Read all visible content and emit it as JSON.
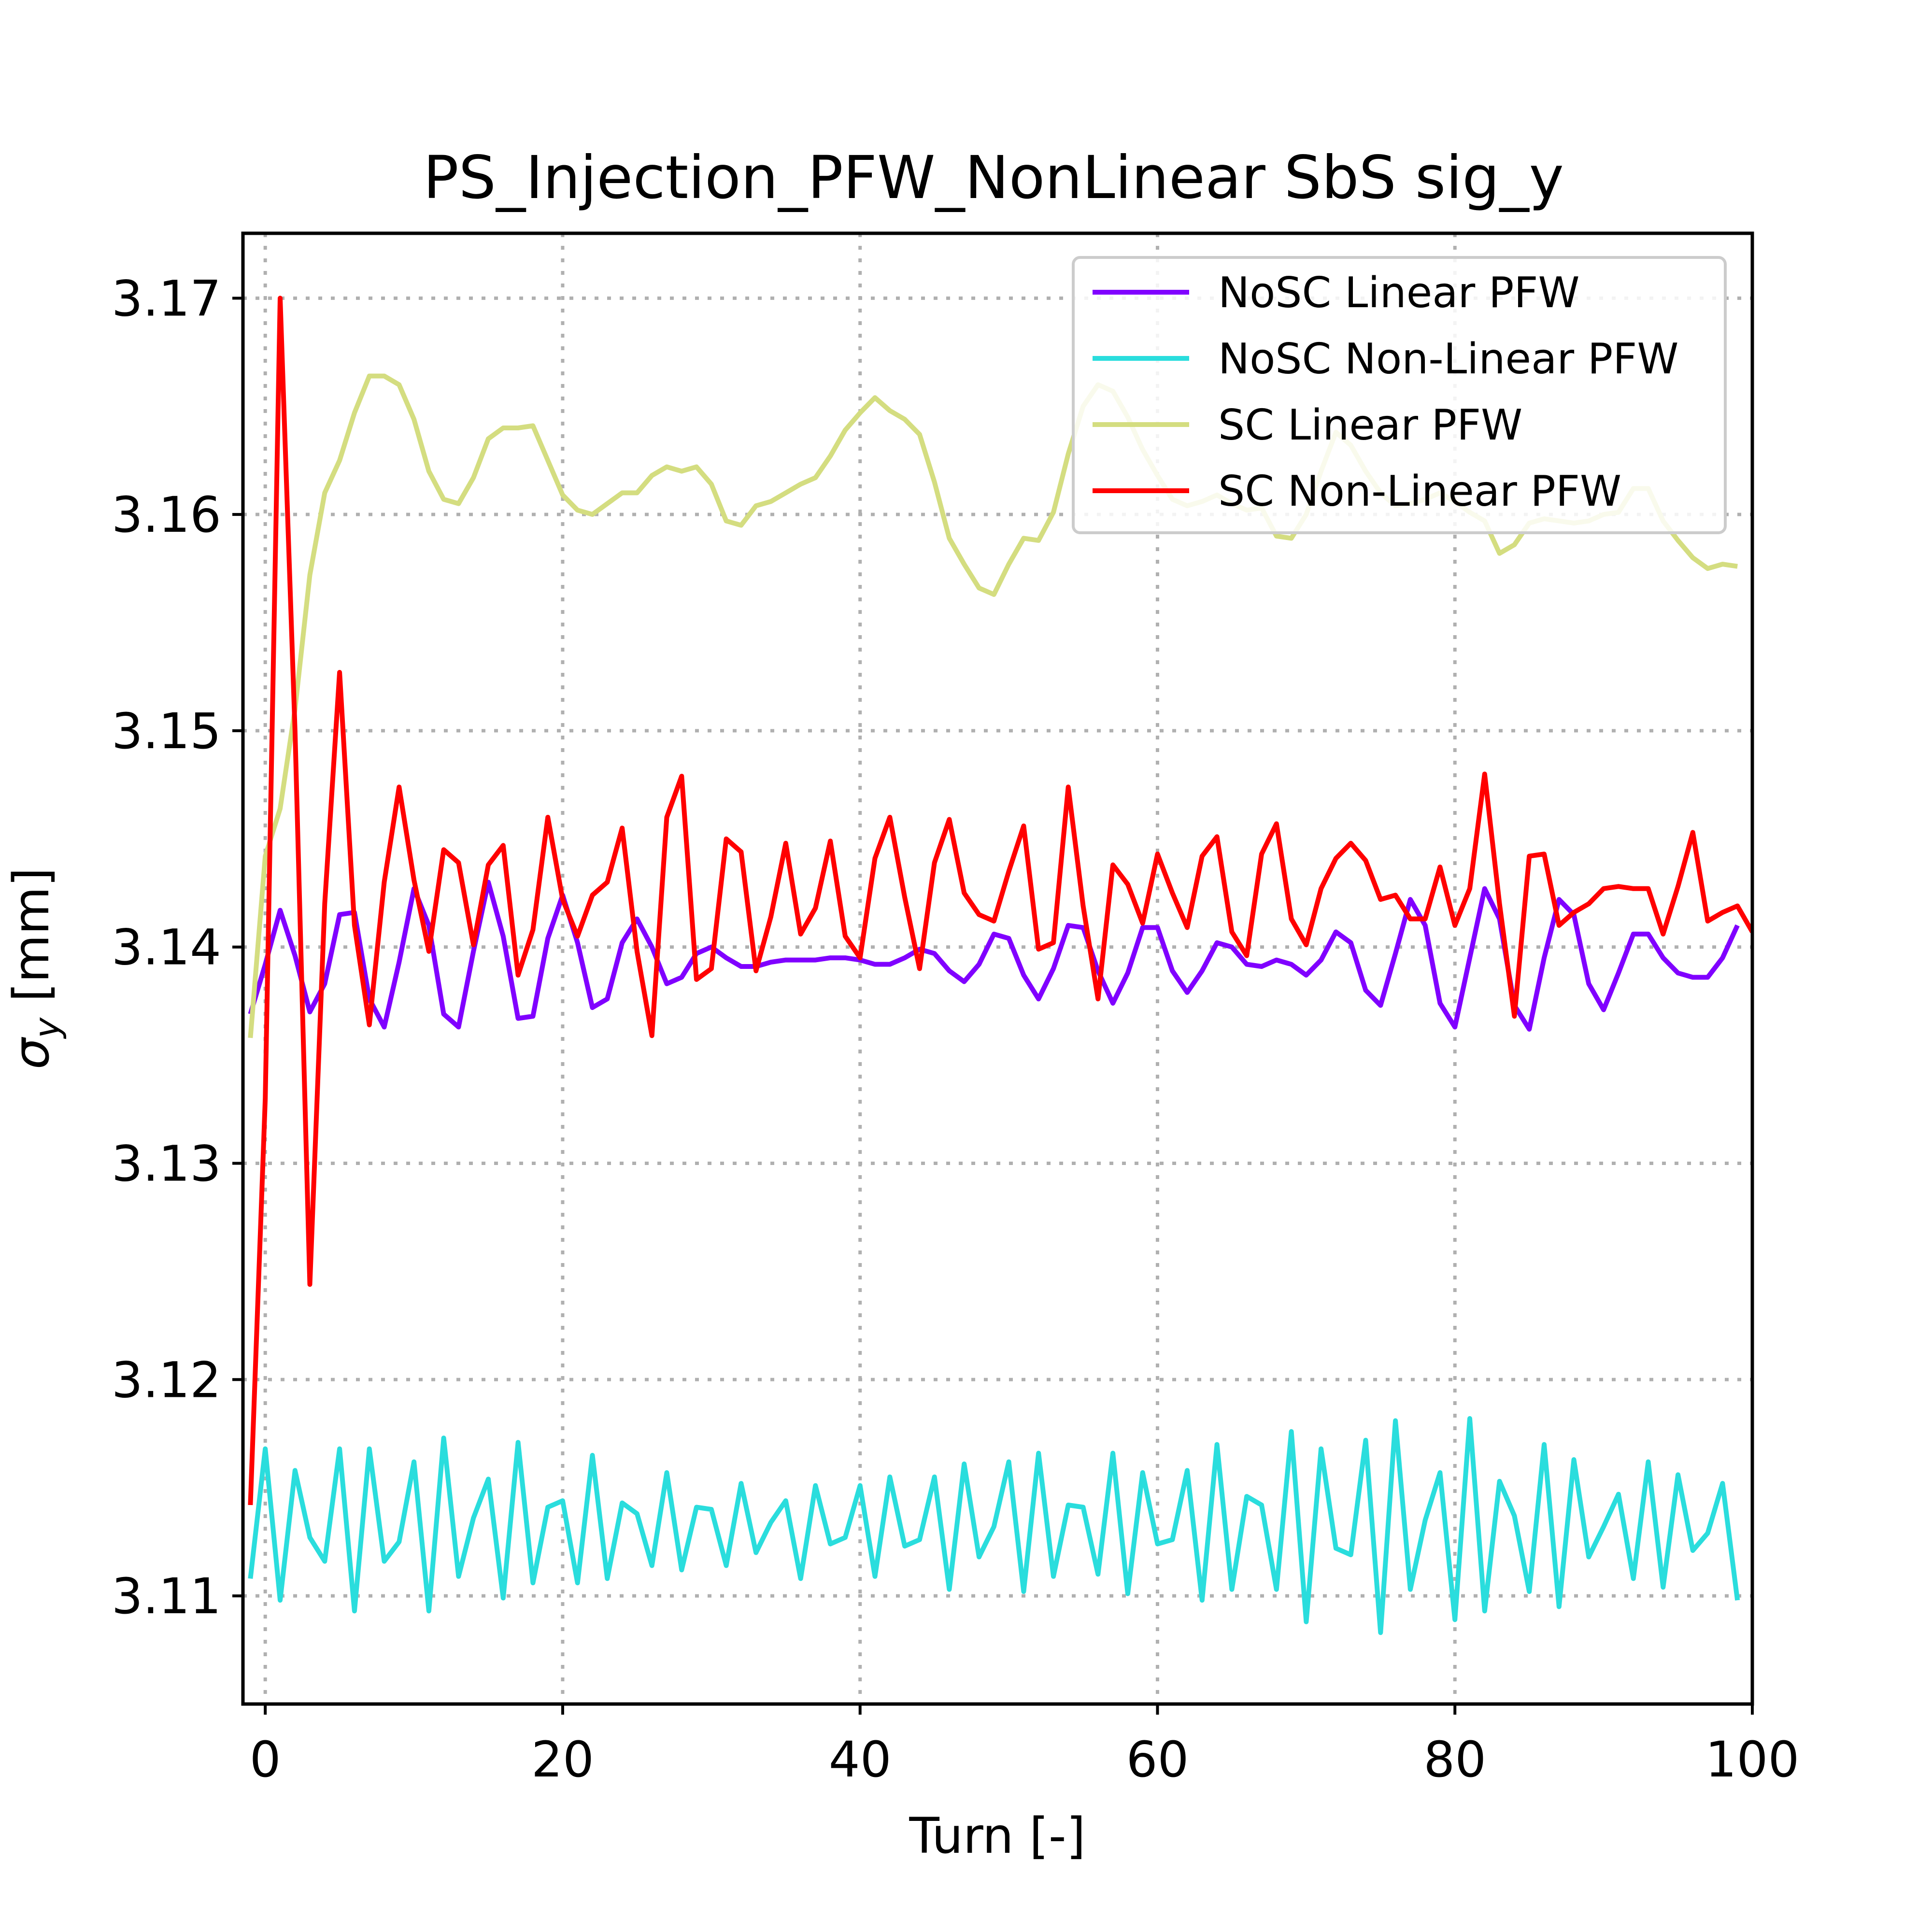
{
  "chart_data": {
    "type": "line",
    "title": "PS_Injection_PFW_NonLinear SbS sig_y",
    "xlabel": "Turn [-]",
    "ylabel_main": "σ",
    "ylabel_sub": "y",
    "ylabel_tail": " [mm]",
    "xlim": [
      -1.5,
      100
    ],
    "ylim": [
      3.105,
      3.173
    ],
    "xticks": [
      0,
      20,
      40,
      60,
      80,
      100
    ],
    "xtick_labels": [
      "0",
      "20",
      "40",
      "60",
      "80",
      "100"
    ],
    "yticks": [
      3.11,
      3.12,
      3.13,
      3.14,
      3.15,
      3.16,
      3.17
    ],
    "ytick_labels": [
      "3.11",
      "3.12",
      "3.13",
      "3.14",
      "3.15",
      "3.16",
      "3.17"
    ],
    "grid": true,
    "legend_position": "top-right",
    "series": [
      {
        "name": "NoSC Linear PFW",
        "color": "#8000ff",
        "x_start": -1,
        "values": [
          3.1369,
          3.1392,
          3.1417,
          3.1396,
          3.137,
          3.1383,
          3.1415,
          3.1416,
          3.1376,
          3.1363,
          3.1393,
          3.1427,
          3.141,
          3.1369,
          3.1363,
          3.1398,
          3.143,
          3.1405,
          3.1367,
          3.1368,
          3.1404,
          3.1424,
          3.1402,
          3.1372,
          3.1376,
          3.1402,
          3.1413,
          3.14,
          3.1383,
          3.1386,
          3.1397,
          3.14,
          3.1395,
          3.1391,
          3.1391,
          3.1393,
          3.1394,
          3.1394,
          3.1394,
          3.1395,
          3.1395,
          3.1394,
          3.1392,
          3.1392,
          3.1395,
          3.1399,
          3.1397,
          3.1389,
          3.1384,
          3.1392,
          3.1406,
          3.1404,
          3.1387,
          3.1376,
          3.139,
          3.141,
          3.1409,
          3.1389,
          3.1374,
          3.1388,
          3.1409,
          3.1409,
          3.1389,
          3.1379,
          3.1389,
          3.1402,
          3.14,
          3.1392,
          3.1391,
          3.1394,
          3.1392,
          3.1387,
          3.1394,
          3.1407,
          3.1402,
          3.138,
          3.1373,
          3.1397,
          3.1422,
          3.141,
          3.1374,
          3.1363,
          3.1395,
          3.1427,
          3.1413,
          3.1373,
          3.1362,
          3.1395,
          3.1422,
          3.1415,
          3.1383,
          3.1371,
          3.1388,
          3.1406,
          3.1406,
          3.1395,
          3.1388,
          3.1386,
          3.1386,
          3.1395,
          3.141
        ]
      },
      {
        "name": "NoSC Non-Linear PFW",
        "color": "#2adddd",
        "x_start": -1,
        "values": [
          3.1108,
          3.1168,
          3.1098,
          3.1158,
          3.1127,
          3.1116,
          3.1168,
          3.1093,
          3.1168,
          3.1116,
          3.1125,
          3.1162,
          3.1093,
          3.1173,
          3.1109,
          3.1136,
          3.1154,
          3.1099,
          3.1171,
          3.1106,
          3.1141,
          3.1144,
          3.1106,
          3.1165,
          3.1108,
          3.1143,
          3.1138,
          3.1114,
          3.1157,
          3.1112,
          3.1141,
          3.114,
          3.1114,
          3.1152,
          3.112,
          3.1134,
          3.1144,
          3.1108,
          3.1151,
          3.1124,
          3.1127,
          3.1151,
          3.1109,
          3.1155,
          3.1123,
          3.1126,
          3.1155,
          3.1103,
          3.1161,
          3.1118,
          3.1132,
          3.1162,
          3.1102,
          3.1166,
          3.1109,
          3.1142,
          3.1141,
          3.111,
          3.1166,
          3.1101,
          3.1157,
          3.1124,
          3.1126,
          3.1158,
          3.1098,
          3.117,
          3.1103,
          3.1146,
          3.1142,
          3.1103,
          3.1176,
          3.1088,
          3.1168,
          3.1122,
          3.1119,
          3.1172,
          3.1083,
          3.1181,
          3.1103,
          3.1135,
          3.1157,
          3.1089,
          3.1182,
          3.1093,
          3.1153,
          3.1137,
          3.1102,
          3.117,
          3.1095,
          3.1163,
          3.1118,
          3.1132,
          3.1147,
          3.1108,
          3.1162,
          3.1104,
          3.1156,
          3.1121,
          3.1129,
          3.1152,
          3.1098
        ]
      },
      {
        "name": "SC Linear PFW",
        "color": "#d4dd80",
        "x_start": -1,
        "values": [
          3.1358,
          3.1442,
          3.1464,
          3.151,
          3.1572,
          3.161,
          3.1625,
          3.1647,
          3.1664,
          3.1664,
          3.166,
          3.1644,
          3.162,
          3.1607,
          3.1605,
          3.1617,
          3.1635,
          3.164,
          3.164,
          3.1641,
          3.1625,
          3.1609,
          3.1602,
          3.16,
          3.1605,
          3.161,
          3.161,
          3.1618,
          3.1622,
          3.162,
          3.1622,
          3.1614,
          3.1597,
          3.1595,
          3.1604,
          3.1606,
          3.161,
          3.1614,
          3.1617,
          3.1627,
          3.1639,
          3.1647,
          3.1654,
          3.1648,
          3.1644,
          3.1637,
          3.1615,
          3.1589,
          3.1577,
          3.1566,
          3.1563,
          3.1577,
          3.1589,
          3.1588,
          3.1601,
          3.1628,
          3.165,
          3.166,
          3.1657,
          3.1645,
          3.163,
          3.1618,
          3.1607,
          3.1604,
          3.1606,
          3.1609,
          3.1605,
          3.1602,
          3.1603,
          3.159,
          3.1589,
          3.16,
          3.162,
          3.1638,
          3.1632,
          3.162,
          3.161,
          3.1604,
          3.1605,
          3.1607,
          3.161,
          3.1606,
          3.1601,
          3.1597,
          3.1582,
          3.1586,
          3.1596,
          3.1598,
          3.1597,
          3.1596,
          3.1597,
          3.16,
          3.1601,
          3.1612,
          3.1612,
          3.1597,
          3.1588,
          3.158,
          3.1575,
          3.1577,
          3.1576
        ]
      },
      {
        "name": "SC Non-Linear PFW",
        "color": "#ff0000",
        "x_start": -1,
        "values": [
          3.1142,
          3.133,
          3.17,
          3.15,
          3.1244,
          3.142,
          3.1527,
          3.141,
          3.1364,
          3.143,
          3.1474,
          3.1431,
          3.1398,
          3.1445,
          3.1439,
          3.1401,
          3.1438,
          3.1447,
          3.1387,
          3.1408,
          3.146,
          3.1422,
          3.1405,
          3.1424,
          3.143,
          3.1455,
          3.1398,
          3.1359,
          3.146,
          3.1479,
          3.1385,
          3.139,
          3.145,
          3.1444,
          3.1389,
          3.1414,
          3.1448,
          3.1406,
          3.1418,
          3.1449,
          3.1405,
          3.1395,
          3.1441,
          3.146,
          3.1423,
          3.139,
          3.1439,
          3.1459,
          3.1425,
          3.1415,
          3.1412,
          3.1435,
          3.1456,
          3.1399,
          3.1402,
          3.1474,
          3.1419,
          3.1376,
          3.1438,
          3.1429,
          3.1411,
          3.1443,
          3.1425,
          3.1409,
          3.1442,
          3.1451,
          3.1407,
          3.1396,
          3.1443,
          3.1457,
          3.1413,
          3.1401,
          3.1427,
          3.1441,
          3.1448,
          3.144,
          3.1422,
          3.1424,
          3.1413,
          3.1413,
          3.1437,
          3.141,
          3.1427,
          3.148,
          3.142,
          3.1368,
          3.1442,
          3.1443,
          3.141,
          3.1416,
          3.142,
          3.1427,
          3.1428,
          3.1427,
          3.1427,
          3.1406,
          3.1428,
          3.1453,
          3.1412,
          3.1416,
          3.1419,
          3.1407
        ]
      }
    ]
  }
}
